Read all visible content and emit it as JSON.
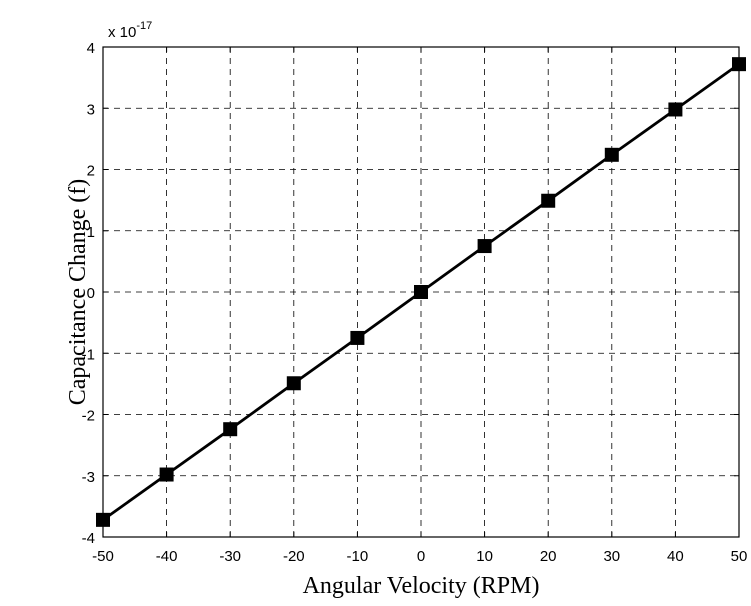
{
  "chart_data": {
    "type": "line",
    "title": "",
    "xlabel": "Angular Velocity (RPM)",
    "ylabel": "Capacitance Change (f)",
    "y_multiplier": "x 10",
    "y_exponent": "-17",
    "xlim": [
      -50,
      50
    ],
    "ylim": [
      -4,
      4
    ],
    "x_ticks": [
      -50,
      -40,
      -30,
      -20,
      -10,
      0,
      10,
      20,
      30,
      40,
      50
    ],
    "y_ticks": [
      -4,
      -3,
      -2,
      -1,
      0,
      1,
      2,
      3,
      4
    ],
    "grid": true,
    "legend": "none",
    "line_color": "#000000",
    "marker": "square",
    "series": [
      {
        "x": [
          -50,
          -40,
          -30,
          -20,
          -10,
          0,
          10,
          20,
          30,
          40,
          50
        ],
        "values": [
          -3.72,
          -2.98,
          -2.24,
          -1.49,
          -0.75,
          0,
          0.75,
          1.49,
          2.24,
          2.98,
          3.72
        ]
      }
    ]
  }
}
